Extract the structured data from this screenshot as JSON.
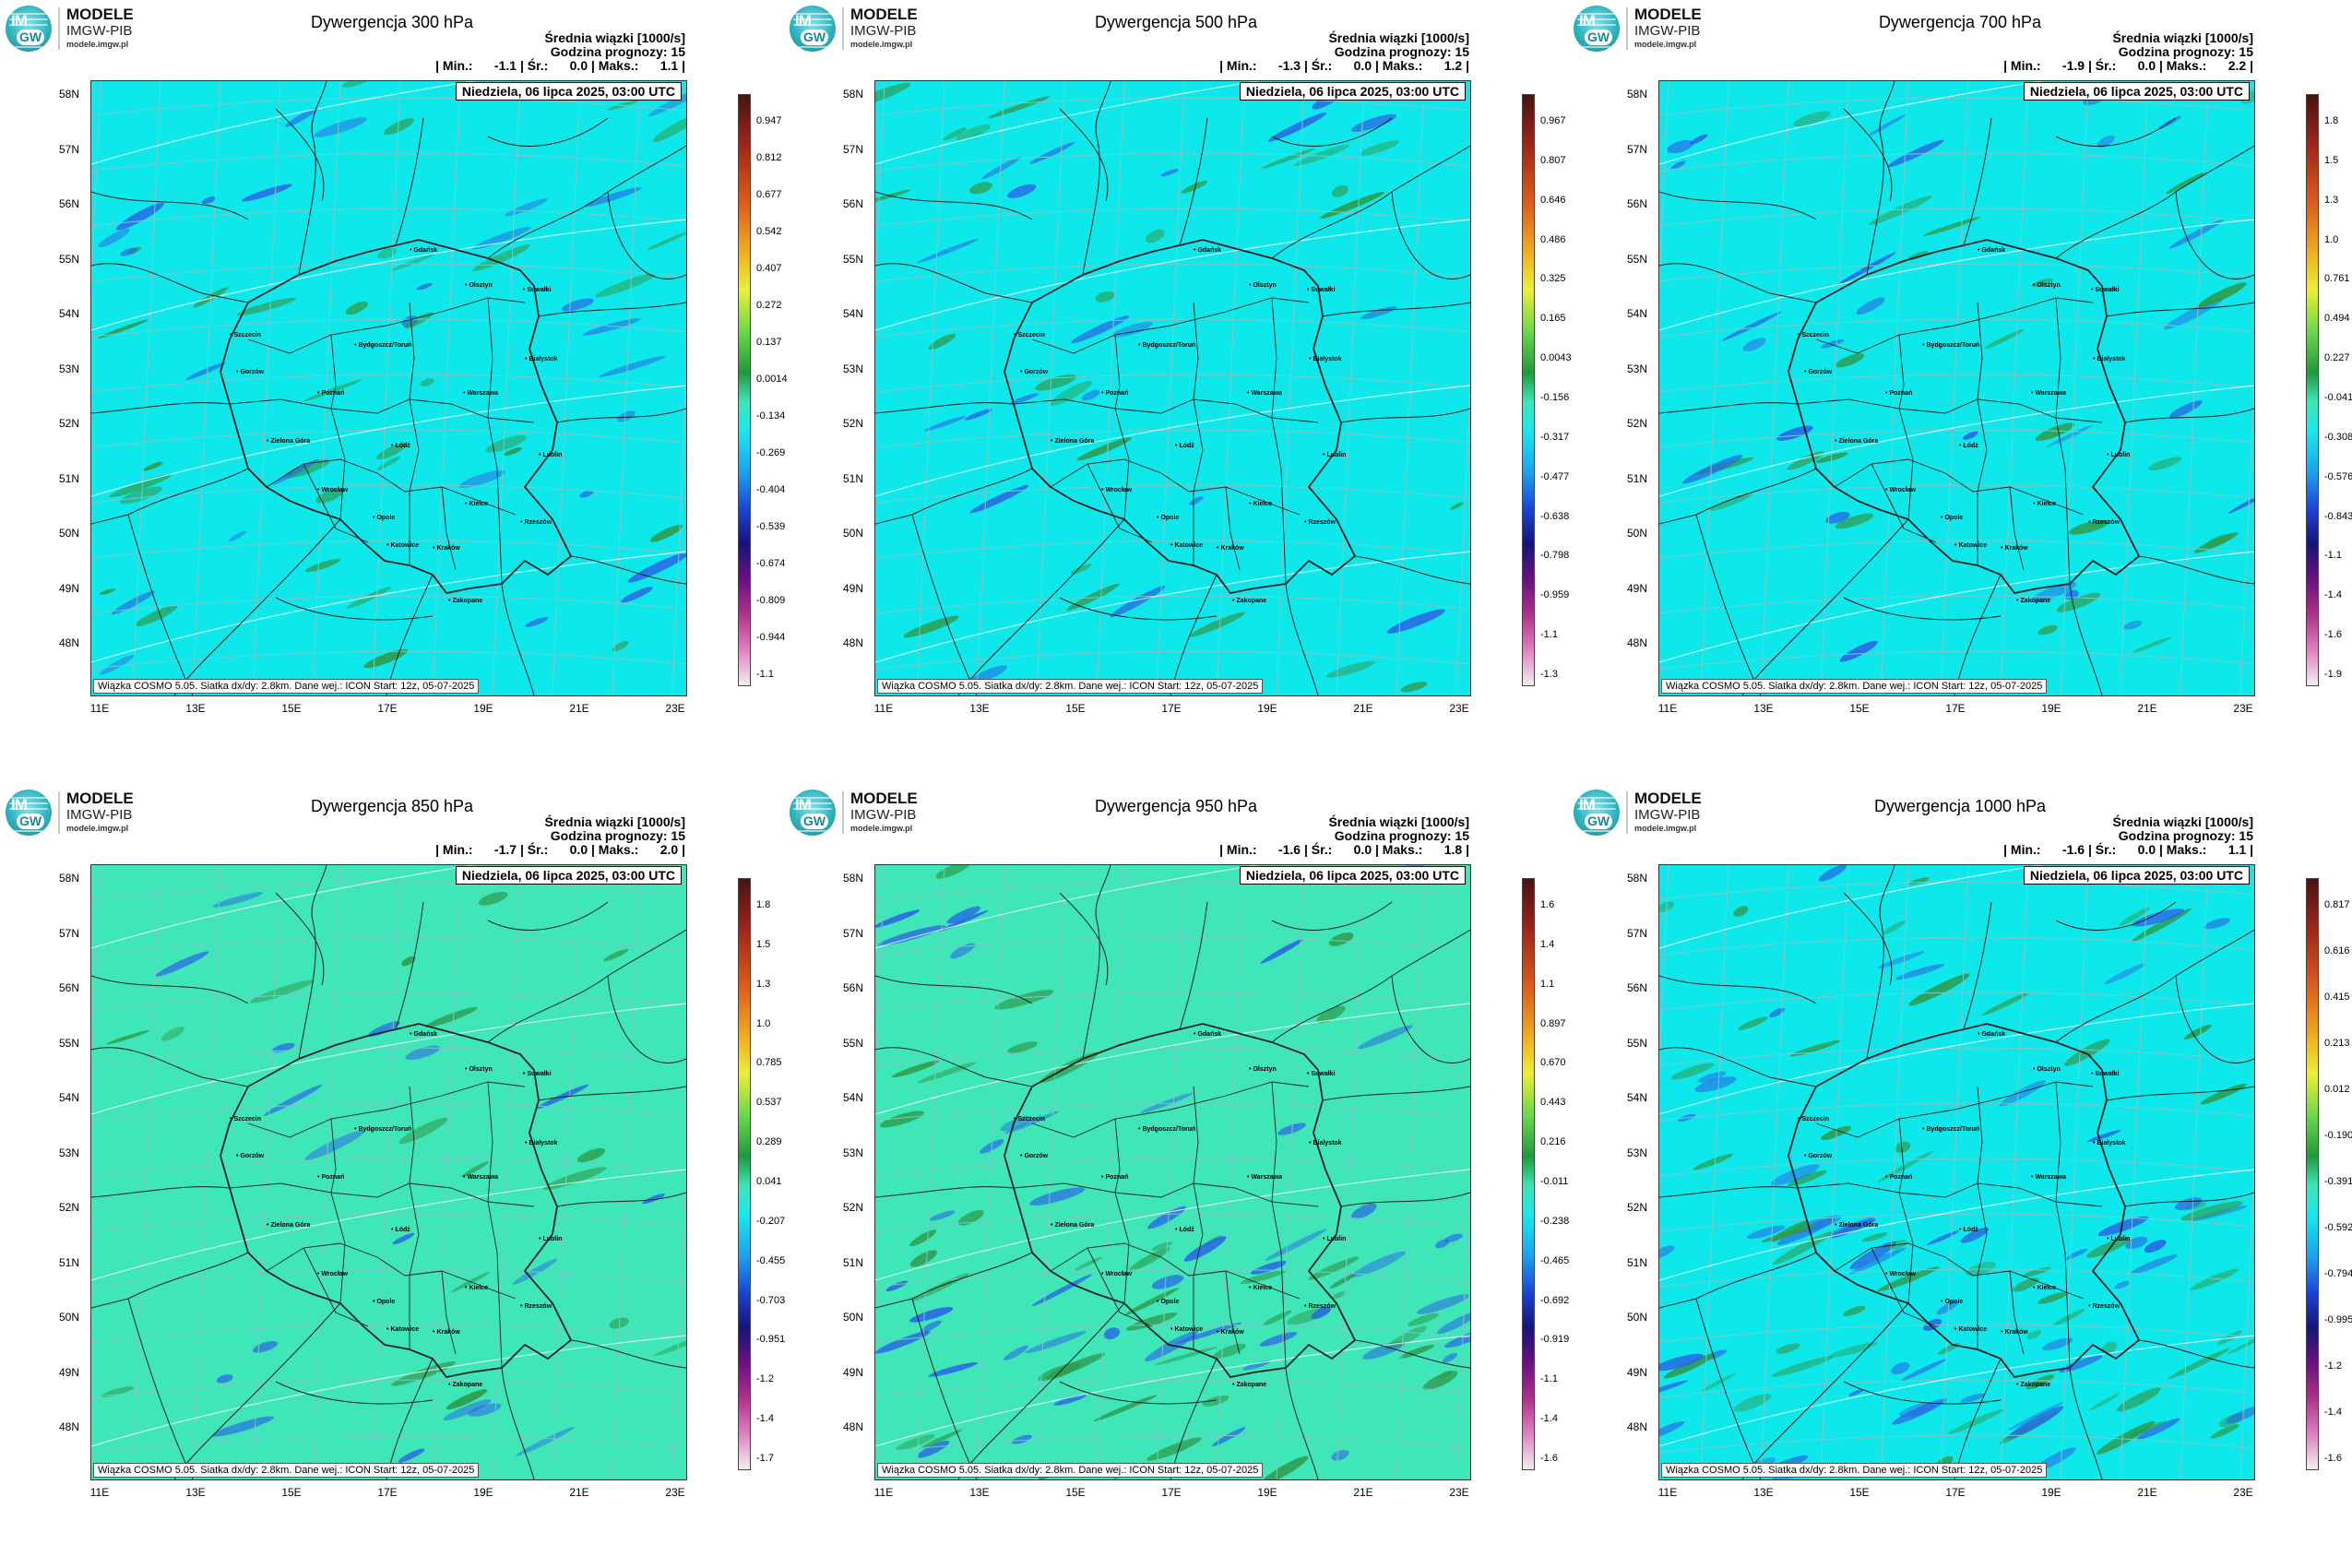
{
  "logo": {
    "line1": "MODELE",
    "line2": "IMGW-PIB",
    "line3": "modele.imgw.pl",
    "badge_top": "IM",
    "badge_bottom": "GW"
  },
  "header_labels": {
    "mean": "Średnia wiązki [1000/s]",
    "forecast_hour": "Godzina prognozy: 15"
  },
  "date_label": "Niedziela, 06 lipca 2025, 03:00 UTC",
  "footer": "Wiązka COSMO 5.05. Siatka dx/dy: 2.8km. Dane wej.: ICON Start: 12z, 05-07-2025",
  "lat_labels": [
    "58N",
    "57N",
    "56N",
    "55N",
    "54N",
    "53N",
    "52N",
    "51N",
    "50N",
    "49N",
    "48N"
  ],
  "lon_labels": [
    "11E",
    "13E",
    "15E",
    "17E",
    "19E",
    "21E",
    "23E"
  ],
  "cities": [
    "Gdańsk",
    "Olsztyn",
    "Suwałki",
    "Szczecin",
    "Bydgoszcz/Toruń",
    "Białystok",
    "Gorzów",
    "Poznań",
    "Warszawa",
    "Zielona Góra",
    "Łódź",
    "Lublin",
    "Wrocław",
    "Kielce",
    "Opole",
    "Rzeszów",
    "Katowice",
    "Kraków",
    "Zakopane"
  ],
  "colors": {
    "cyan": "#0fe8ea",
    "green_bg": "#3ee6b8",
    "green_blob": "#2e9a4a",
    "blue_blob": "#2a64e6",
    "grid": "#7ac8c8",
    "border": "#222222"
  },
  "panels": [
    {
      "title": "Dywergencja 300 hPa",
      "stats": "| Min.:      -1.1 | Śr.:      0.0 | Maks.:      1.1 |",
      "background": "cyan",
      "colorbar": [
        "0.947",
        "0.812",
        "0.677",
        "0.542",
        "0.407",
        "0.272",
        "0.137",
        "0.0014",
        "-0.134",
        "-0.269",
        "-0.404",
        "-0.539",
        "-0.674",
        "-0.809",
        "-0.944",
        "-1.1"
      ]
    },
    {
      "title": "Dywergencja 500 hPa",
      "stats": "| Min.:      -1.3 | Śr.:      0.0 | Maks.:      1.2 |",
      "background": "cyan",
      "colorbar": [
        "0.967",
        "0.807",
        "0.646",
        "0.486",
        "0.325",
        "0.165",
        "0.0043",
        "-0.156",
        "-0.317",
        "-0.477",
        "-0.638",
        "-0.798",
        "-0.959",
        "-1.1",
        "-1.3"
      ]
    },
    {
      "title": "Dywergencja 700 hPa",
      "stats": "| Min.:      -1.9 | Śr.:      0.0 | Maks.:      2.2 |",
      "background": "cyan",
      "colorbar": [
        "1.8",
        "1.5",
        "1.3",
        "1.0",
        "0.761",
        "0.494",
        "0.227",
        "-0.041",
        "-0.308",
        "-0.576",
        "-0.843",
        "-1.1",
        "-1.4",
        "-1.6",
        "-1.9"
      ]
    },
    {
      "title": "Dywergencja 850 hPa",
      "stats": "| Min.:      -1.7 | Śr.:      0.0 | Maks.:      2.0 |",
      "background": "green",
      "colorbar": [
        "1.8",
        "1.5",
        "1.3",
        "1.0",
        "0.785",
        "0.537",
        "0.289",
        "0.041",
        "-0.207",
        "-0.455",
        "-0.703",
        "-0.951",
        "-1.2",
        "-1.4",
        "-1.7"
      ]
    },
    {
      "title": "Dywergencja 950 hPa",
      "stats": "| Min.:      -1.6 | Śr.:      0.0 | Maks.:      1.8 |",
      "background": "green",
      "colorbar": [
        "1.6",
        "1.4",
        "1.1",
        "0.897",
        "0.670",
        "0.443",
        "0.216",
        "-0.011",
        "-0.238",
        "-0.465",
        "-0.692",
        "-0.919",
        "-1.1",
        "-1.4",
        "-1.6"
      ]
    },
    {
      "title": "Dywergencja 1000 hPa",
      "stats": "| Min.:      -1.6 | Śr.:      0.0 | Maks.:      1.1 |",
      "background": "cyan",
      "colorbar": [
        "0.817",
        "0.616",
        "0.415",
        "0.213",
        "0.012",
        "-0.190",
        "-0.391",
        "-0.592",
        "-0.794",
        "-0.995",
        "-1.2",
        "-1.4",
        "-1.6"
      ]
    }
  ]
}
